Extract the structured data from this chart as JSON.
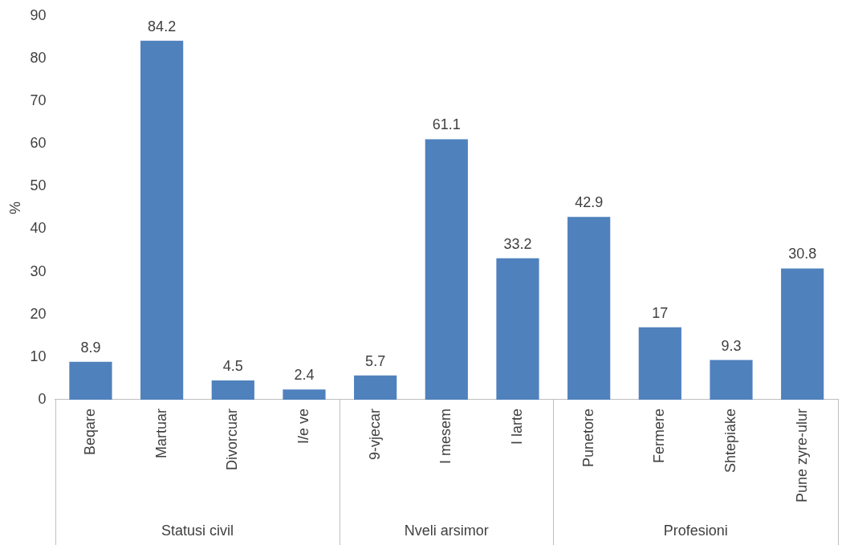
{
  "chart_data": {
    "type": "bar",
    "ylabel": "%",
    "categories": [
      "Beqare",
      "Martuar",
      "Divorcuar",
      "I/e ve",
      "9-vjecar",
      "I mesem",
      "I larte",
      "Punetore",
      "Fermere",
      "Shtepiake",
      "Pune zyre-ulur"
    ],
    "values": [
      8.9,
      84.2,
      4.5,
      2.4,
      5.7,
      61.1,
      33.2,
      42.9,
      17,
      9.3,
      30.8
    ],
    "color": "#4f81bd",
    "ylim": [
      0,
      90
    ],
    "yticks": [
      0,
      10,
      20,
      30,
      40,
      50,
      60,
      70,
      80,
      90
    ],
    "data_labels": true,
    "legend": false,
    "grid": false,
    "annotations": [
      "Statusi civil",
      "Nveli arsimor",
      "Profesioni"
    ]
  }
}
